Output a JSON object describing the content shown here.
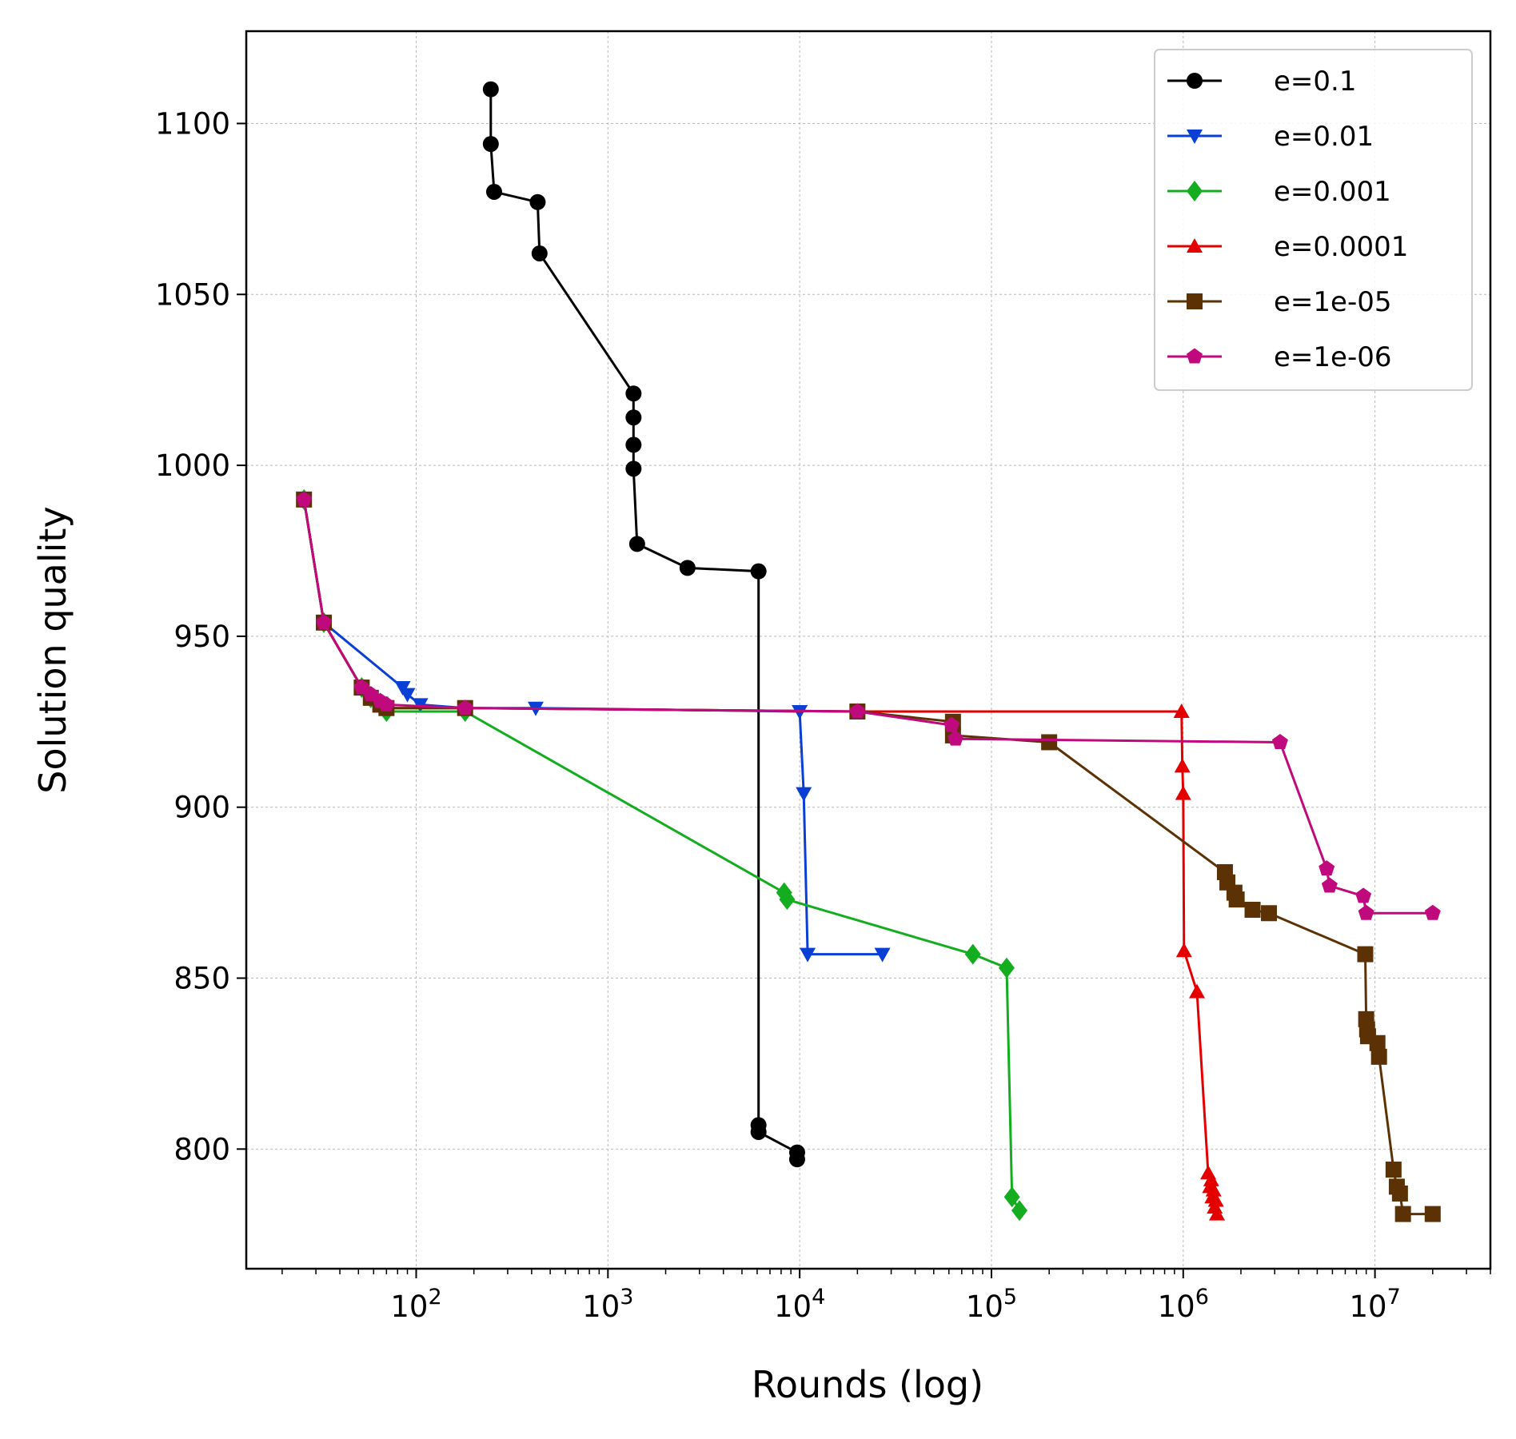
{
  "chart_data": {
    "type": "line",
    "xlabel": "Rounds (log)",
    "ylabel": "Solution quality",
    "xscale": "log",
    "xlim": [
      13,
      40000000
    ],
    "ylim": [
      765,
      1127
    ],
    "x_ticks": [
      100,
      1000,
      10000,
      100000,
      1000000,
      10000000
    ],
    "x_tick_labels": [
      {
        "base": "10",
        "exp": "2"
      },
      {
        "base": "10",
        "exp": "3"
      },
      {
        "base": "10",
        "exp": "4"
      },
      {
        "base": "10",
        "exp": "5"
      },
      {
        "base": "10",
        "exp": "6"
      },
      {
        "base": "10",
        "exp": "7"
      }
    ],
    "y_ticks": [
      800,
      850,
      900,
      950,
      1000,
      1050,
      1100
    ],
    "grid": true,
    "legend_position": "top-right",
    "series": [
      {
        "name": "e=0.1",
        "color": "#000000",
        "marker": "circle",
        "x": [
          245,
          245,
          255,
          430,
          440,
          1360,
          1360,
          1360,
          1360,
          1420,
          2600,
          6100,
          6100,
          6100,
          9700,
          9700
        ],
        "y": [
          1110,
          1094,
          1080,
          1077,
          1062,
          1021,
          1014,
          1006,
          999,
          977,
          970,
          969,
          807,
          805,
          799,
          797
        ]
      },
      {
        "name": "e=0.01",
        "color": "#0a3fd6",
        "marker": "triangle-down",
        "x": [
          26,
          33,
          85,
          90,
          105,
          180,
          420,
          10000,
          10500,
          11000,
          27000
        ],
        "y": [
          990,
          954,
          935,
          933,
          930,
          929,
          929,
          928,
          904,
          857,
          857
        ]
      },
      {
        "name": "e=0.001",
        "color": "#14ad1f",
        "marker": "diamond",
        "x": [
          26,
          33,
          52,
          58,
          65,
          70,
          180,
          8300,
          8600,
          80000,
          120000,
          128000,
          140000
        ],
        "y": [
          990,
          954,
          935,
          932,
          930,
          928,
          928,
          875,
          873,
          857,
          853,
          786,
          782
        ]
      },
      {
        "name": "e=0.0001",
        "color": "#e50000",
        "marker": "triangle-up",
        "x": [
          26,
          33,
          52,
          58,
          65,
          70,
          180,
          20000,
          980000,
          990000,
          1000000,
          1010000,
          1180000,
          1350000,
          1380000,
          1400000,
          1420000,
          1440000,
          1460000,
          1480000,
          1500000
        ],
        "y": [
          990,
          954,
          935,
          932,
          930,
          929,
          929,
          928,
          928,
          912,
          904,
          858,
          846,
          793,
          789,
          791,
          786,
          788,
          783,
          785,
          781
        ]
      },
      {
        "name": "e=1e-05",
        "color": "#5c3205",
        "marker": "square",
        "x": [
          26,
          33,
          52,
          58,
          65,
          70,
          180,
          20000,
          63000,
          63000,
          200000,
          1650000,
          1700000,
          1850000,
          1900000,
          2300000,
          2800000,
          8900000,
          9000000,
          9100000,
          9200000,
          10300000,
          10500000,
          12500000,
          13000000,
          13500000,
          14000000,
          20000000
        ],
        "y": [
          990,
          954,
          935,
          932,
          930,
          929,
          929,
          928,
          925,
          921,
          919,
          881,
          878,
          875,
          873,
          870,
          869,
          857,
          838,
          835,
          833,
          831,
          827,
          794,
          789,
          787,
          781,
          781
        ]
      },
      {
        "name": "e=1e-06",
        "color": "#c0097c",
        "marker": "pentagon",
        "x": [
          26,
          33,
          52,
          58,
          65,
          70,
          180,
          20000,
          62000,
          65000,
          3200000,
          5600000,
          5800000,
          8700000,
          9000000,
          20000000
        ],
        "y": [
          990,
          954,
          935,
          933,
          931,
          930,
          929,
          928,
          924,
          920,
          919,
          882,
          877,
          874,
          869,
          869
        ]
      }
    ]
  }
}
